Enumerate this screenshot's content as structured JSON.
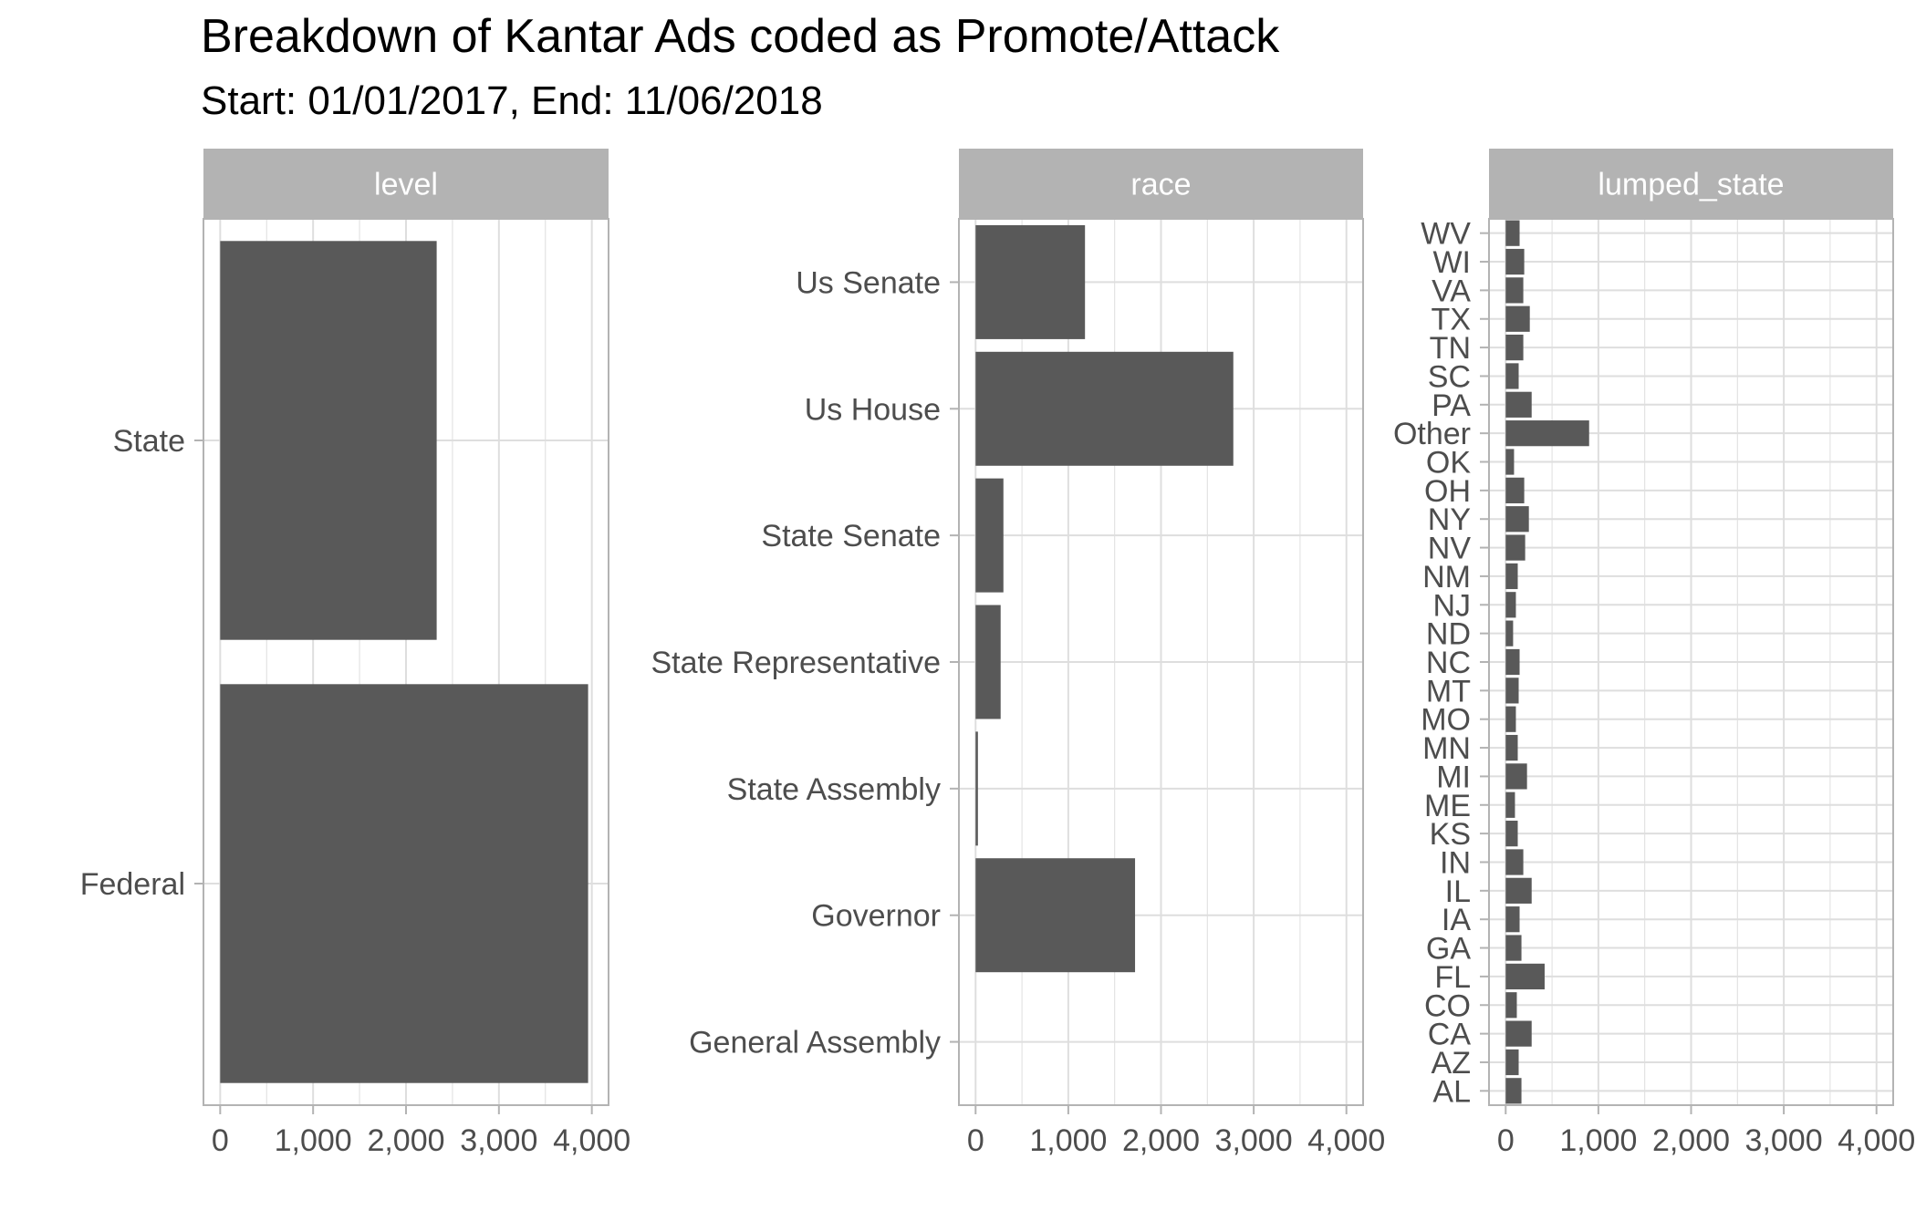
{
  "title": "Breakdown of Kantar Ads coded as Promote/Attack",
  "subtitle": "Start: 01/01/2017, End: 11/06/2018",
  "colors": {
    "bar": "#595959",
    "strip": "#b3b3b3",
    "strip_text": "#ffffff",
    "grid": "#dedede",
    "axis_text": "#4d4d4d",
    "panel_border": "#b3b3b3"
  },
  "chart_data": [
    {
      "type": "bar",
      "orientation": "horizontal",
      "facet": "level",
      "categories": [
        "State",
        "Federal"
      ],
      "values": [
        2330,
        3960
      ],
      "xlim": [
        -180,
        4180
      ],
      "xticks": [
        0,
        1000,
        2000,
        3000,
        4000
      ],
      "xtick_labels": [
        "0",
        "1,000",
        "2,000",
        "3,000",
        "4,000"
      ],
      "grid": true
    },
    {
      "type": "bar",
      "orientation": "horizontal",
      "facet": "race",
      "categories": [
        "Us Senate",
        "Us House",
        "State Senate",
        "State Representative",
        "State Assembly",
        "Governor",
        "General Assembly"
      ],
      "values": [
        1180,
        2780,
        300,
        270,
        25,
        1720,
        0
      ],
      "xlim": [
        -180,
        4180
      ],
      "xticks": [
        0,
        1000,
        2000,
        3000,
        4000
      ],
      "xtick_labels": [
        "0",
        "1,000",
        "2,000",
        "3,000",
        "4,000"
      ],
      "grid": true
    },
    {
      "type": "bar",
      "orientation": "horizontal",
      "facet": "lumped_state",
      "categories": [
        "WV",
        "WI",
        "VA",
        "TX",
        "TN",
        "SC",
        "PA",
        "Other",
        "OK",
        "OH",
        "NY",
        "NV",
        "NM",
        "NJ",
        "ND",
        "NC",
        "MT",
        "MO",
        "MN",
        "MI",
        "ME",
        "KS",
        "IN",
        "IL",
        "IA",
        "GA",
        "FL",
        "CO",
        "CA",
        "AZ",
        "AL"
      ],
      "values": [
        150,
        200,
        190,
        260,
        190,
        140,
        280,
        900,
        90,
        200,
        250,
        210,
        130,
        110,
        80,
        150,
        140,
        110,
        130,
        230,
        100,
        130,
        190,
        280,
        150,
        170,
        420,
        120,
        280,
        140,
        170
      ],
      "xlim": [
        -180,
        4180
      ],
      "xticks": [
        0,
        1000,
        2000,
        3000,
        4000
      ],
      "xtick_labels": [
        "0",
        "1,000",
        "2,000",
        "3,000",
        "4,000"
      ],
      "grid": true
    }
  ]
}
